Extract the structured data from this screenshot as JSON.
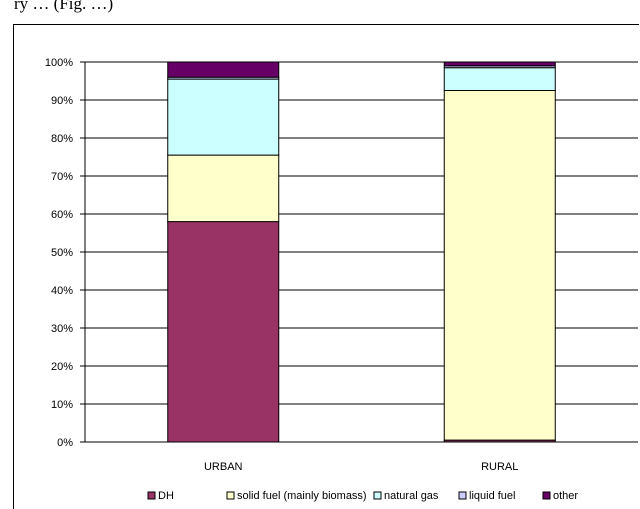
{
  "caption_fragment": "ry … (Fig. …)",
  "chart_data": {
    "type": "bar",
    "stacked": true,
    "categories": [
      "URBAN",
      "RURAL"
    ],
    "series": [
      {
        "name": "DH",
        "color": "#993366",
        "values": [
          58,
          0.5
        ]
      },
      {
        "name": "solid fuel (mainly biomass)",
        "color": "#FFFFCC",
        "values": [
          17.5,
          92
        ]
      },
      {
        "name": "natural gas",
        "color": "#CCFFFF",
        "values": [
          20,
          6
        ]
      },
      {
        "name": "liquid fuel",
        "color": "#CCCCFF",
        "values": [
          0.5,
          0.5
        ]
      },
      {
        "name": "other",
        "color": "#660066",
        "values": [
          4,
          1
        ]
      }
    ],
    "ylim": [
      0,
      100
    ],
    "yticks": [
      "0%",
      "10%",
      "20%",
      "30%",
      "40%",
      "50%",
      "60%",
      "70%",
      "80%",
      "90%",
      "100%"
    ],
    "grid": true,
    "legend_position": "bottom",
    "legend_labels": [
      "DH",
      "solid fuel (mainly biomass)",
      "natural gas",
      "liquid fuel",
      "other"
    ]
  }
}
